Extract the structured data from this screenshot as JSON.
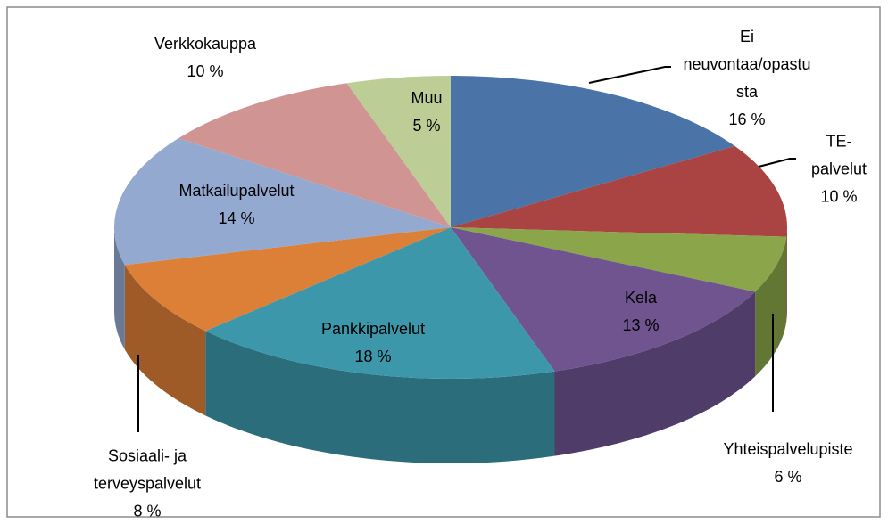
{
  "chart_data": {
    "type": "pie",
    "categories": [
      "Ei neuvontaa/opastusta",
      "TE-palvelut",
      "Yhteispalvelupiste",
      "Kela",
      "Pankkipalvelut",
      "Sosiaali- ja terveyspalvelut",
      "Matkailupalvelut",
      "Verkkokauppa",
      "Muu"
    ],
    "values": [
      16,
      10,
      6,
      13,
      18,
      8,
      14,
      10,
      5
    ],
    "value_labels": [
      "16 %",
      "10 %",
      "6 %",
      "13 %",
      "18 %",
      "8 %",
      "14 %",
      "10 %",
      "5 %"
    ],
    "colors": [
      "#4a73a8",
      "#a94442",
      "#8aa54a",
      "#6f5490",
      "#3d97ab",
      "#dc7f37",
      "#93a9d0",
      "#d09493",
      "#bcce96"
    ]
  }
}
